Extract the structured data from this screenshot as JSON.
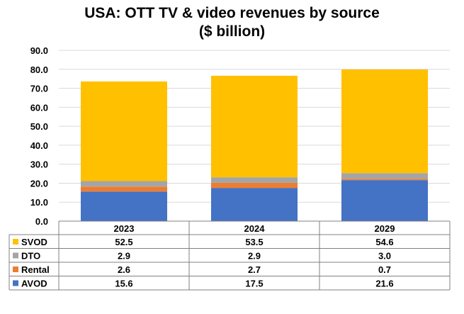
{
  "chart_data": {
    "type": "bar",
    "stacked": true,
    "title_line1": "USA: OTT TV & video revenues by source",
    "title_line2": "($ billion)",
    "categories": [
      "2023",
      "2024",
      "2029"
    ],
    "series": [
      {
        "name": "AVOD",
        "color": "#4472C4",
        "values": [
          15.6,
          17.5,
          21.6
        ]
      },
      {
        "name": "Rental",
        "color": "#ED7D31",
        "values": [
          2.6,
          2.7,
          0.7
        ]
      },
      {
        "name": "DTO",
        "color": "#A5A5A5",
        "values": [
          2.9,
          2.9,
          3.0
        ]
      },
      {
        "name": "SVOD",
        "color": "#FFC000",
        "values": [
          52.5,
          53.5,
          54.6
        ]
      }
    ],
    "table_rows": [
      {
        "name": "SVOD",
        "color": "#FFC000",
        "values": [
          "52.5",
          "53.5",
          "54.6"
        ]
      },
      {
        "name": "DTO",
        "color": "#A5A5A5",
        "values": [
          "2.9",
          "2.9",
          "3.0"
        ]
      },
      {
        "name": "Rental",
        "color": "#ED7D31",
        "values": [
          "2.6",
          "2.7",
          "0.7"
        ]
      },
      {
        "name": "AVOD",
        "color": "#4472C4",
        "values": [
          "15.6",
          "17.5",
          "21.6"
        ]
      }
    ],
    "y_ticks": [
      "0.0",
      "10.0",
      "20.0",
      "30.0",
      "40.0",
      "50.0",
      "60.0",
      "70.0",
      "80.0",
      "90.0"
    ],
    "ylim": [
      0,
      90
    ],
    "grid": true,
    "legend": "data-table"
  }
}
